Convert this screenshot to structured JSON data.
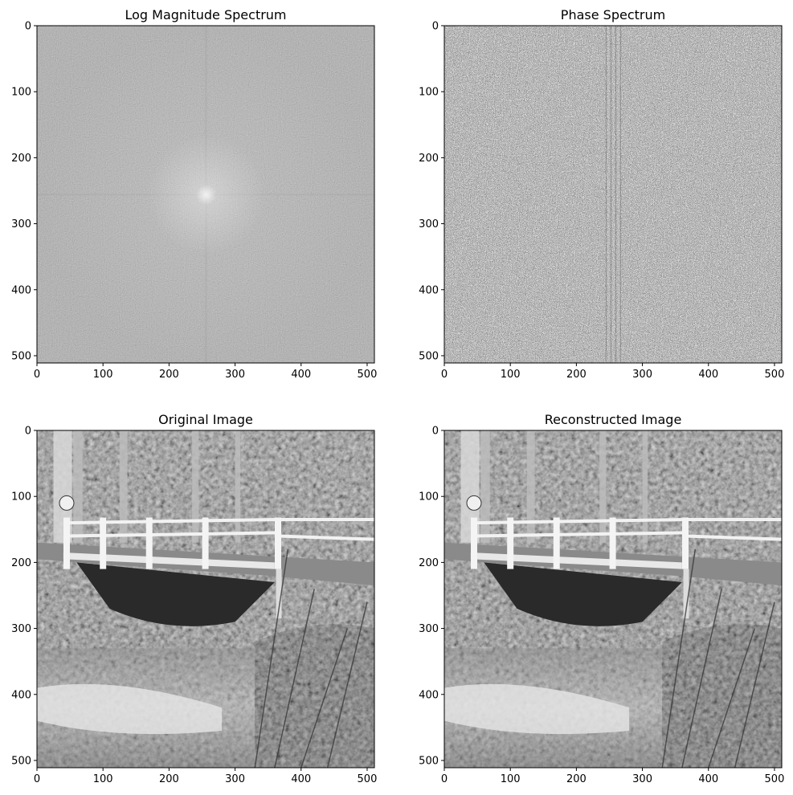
{
  "figure": {
    "colors": {
      "background": "#ffffff",
      "axis": "#000000",
      "magnitude_base": "#6e6e6e",
      "magnitude_center": "#d8d8d8",
      "phase_dark": "#111111",
      "phase_light": "#f0f0f0"
    }
  },
  "chart_data": [
    {
      "type": "heatmap",
      "name": "magnitude",
      "title": "Log Magnitude Spectrum",
      "colormap": "gray",
      "xlim": [
        0,
        511
      ],
      "ylim": [
        511,
        0
      ],
      "xticks": [
        0,
        100,
        200,
        300,
        400,
        500
      ],
      "yticks": [
        0,
        100,
        200,
        300,
        400,
        500
      ],
      "grid": false
    },
    {
      "type": "heatmap",
      "name": "phase",
      "title": "Phase Spectrum",
      "colormap": "gray",
      "xlim": [
        0,
        511
      ],
      "ylim": [
        511,
        0
      ],
      "xticks": [
        0,
        100,
        200,
        300,
        400,
        500
      ],
      "yticks": [
        0,
        100,
        200,
        300,
        400,
        500
      ],
      "grid": false
    },
    {
      "type": "heatmap",
      "name": "original",
      "title": "Original Image",
      "colormap": "gray",
      "xlim": [
        0,
        511
      ],
      "ylim": [
        511,
        0
      ],
      "xticks": [
        0,
        100,
        200,
        300,
        400,
        500
      ],
      "yticks": [
        0,
        100,
        200,
        300,
        400,
        500
      ],
      "grid": false
    },
    {
      "type": "heatmap",
      "name": "reconstructed",
      "title": "Reconstructed Image",
      "colormap": "gray",
      "xlim": [
        0,
        511
      ],
      "ylim": [
        511,
        0
      ],
      "xticks": [
        0,
        100,
        200,
        300,
        400,
        500
      ],
      "yticks": [
        0,
        100,
        200,
        300,
        400,
        500
      ],
      "grid": false
    }
  ]
}
